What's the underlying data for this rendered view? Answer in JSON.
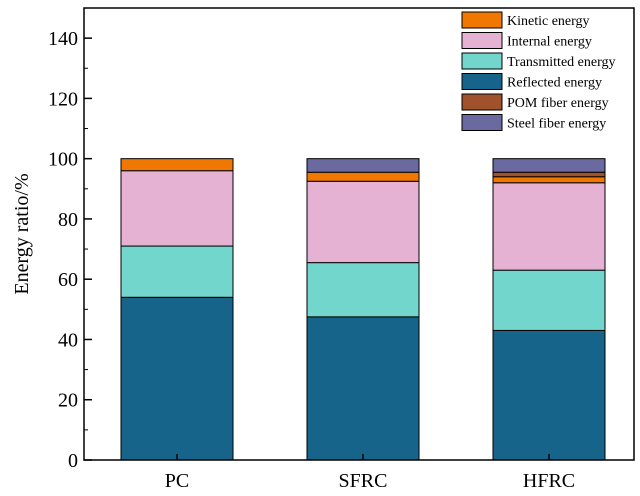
{
  "chart_data": {
    "type": "bar",
    "stacked": true,
    "categories": [
      "PC",
      "SFRC",
      "HFRC"
    ],
    "ylabel": "Energy ratio/%",
    "xlabel": "",
    "ylim": [
      0,
      150
    ],
    "yticks": [
      0,
      20,
      40,
      60,
      80,
      100,
      120,
      140
    ],
    "legend_position": "top-right",
    "grid": false,
    "series": [
      {
        "name": "Reflected energy",
        "color": "#17648b",
        "values": [
          54.0,
          47.5,
          43.0
        ]
      },
      {
        "name": "Transmitted energy",
        "color": "#72d6cc",
        "values": [
          17.0,
          18.0,
          20.0
        ]
      },
      {
        "name": "Internal energy",
        "color": "#e6b2d4",
        "values": [
          25.0,
          27.0,
          29.0
        ]
      },
      {
        "name": "Kinetic energy",
        "color": "#f07800",
        "values": [
          4.0,
          3.0,
          2.0
        ]
      },
      {
        "name": "POM fiber energy",
        "color": "#a0522d",
        "values": [
          0,
          0,
          1.5
        ]
      },
      {
        "name": "Steel fiber energy",
        "color": "#6a6aa0",
        "values": [
          0,
          4.5,
          4.5
        ]
      }
    ],
    "legend_order": [
      "Kinetic energy",
      "Internal energy",
      "Transmitted energy",
      "Reflected energy",
      "POM fiber energy",
      "Steel fiber energy"
    ]
  }
}
